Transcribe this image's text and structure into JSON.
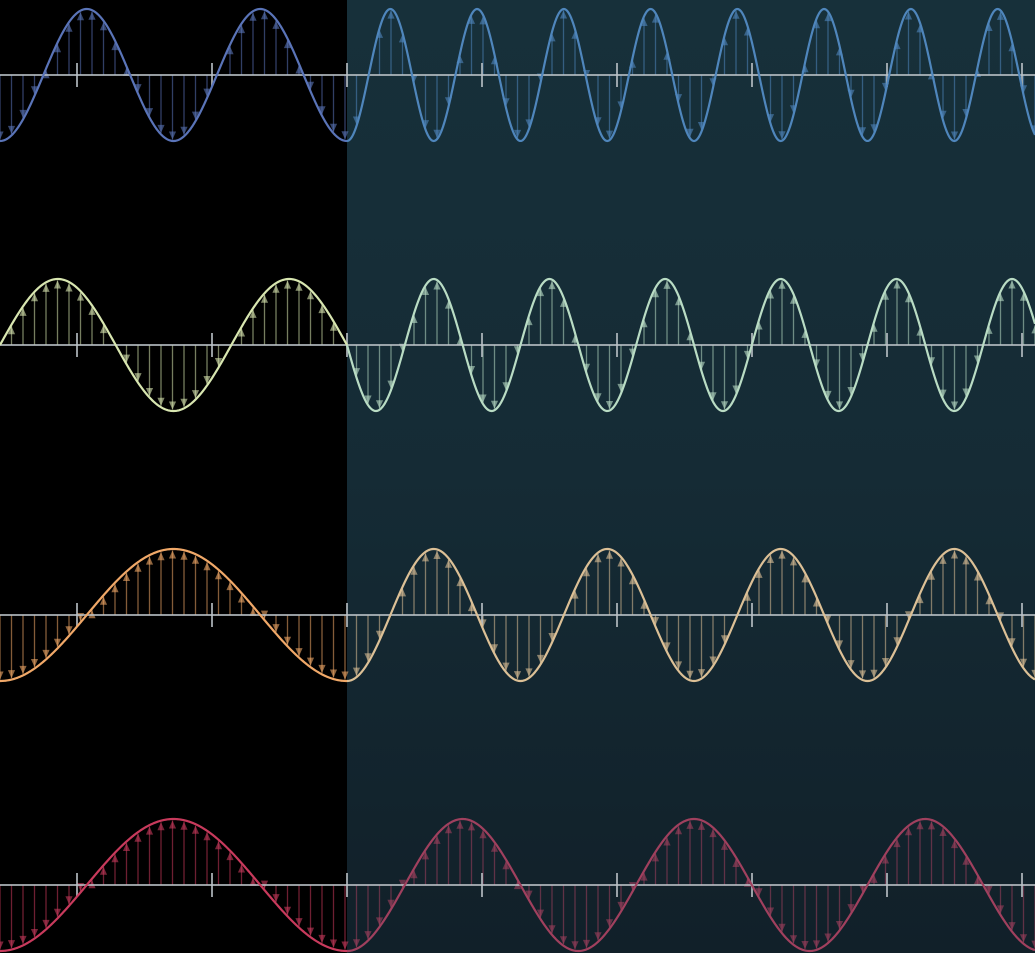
{
  "colors": {
    "background": "#000000",
    "highlight_panel": "#15303a",
    "axis": "#bcc3c8"
  },
  "waves": [
    {
      "id": "blue",
      "color": "#5a74b8",
      "color_in_panel": "#4f86bc",
      "cycles_left": 2.0,
      "cycles_right": 4.0,
      "start_phase": "negative-peak"
    },
    {
      "id": "green",
      "color": "#d8e6b0",
      "color_in_panel": "#b9dcc4",
      "cycles_left": 1.5,
      "cycles_right": 3.0,
      "start_phase": "zero-rising"
    },
    {
      "id": "orange",
      "color": "#f0a868",
      "color_in_panel": "#dcc096",
      "cycles_left": 1.0,
      "cycles_right": 2.0,
      "start_phase": "negative-peak"
    },
    {
      "id": "red",
      "color": "#c83a5c",
      "color_in_panel": "#a0405e",
      "cycles_left": 1.0,
      "cycles_right": 1.5,
      "start_phase": "negative-peak"
    }
  ]
}
